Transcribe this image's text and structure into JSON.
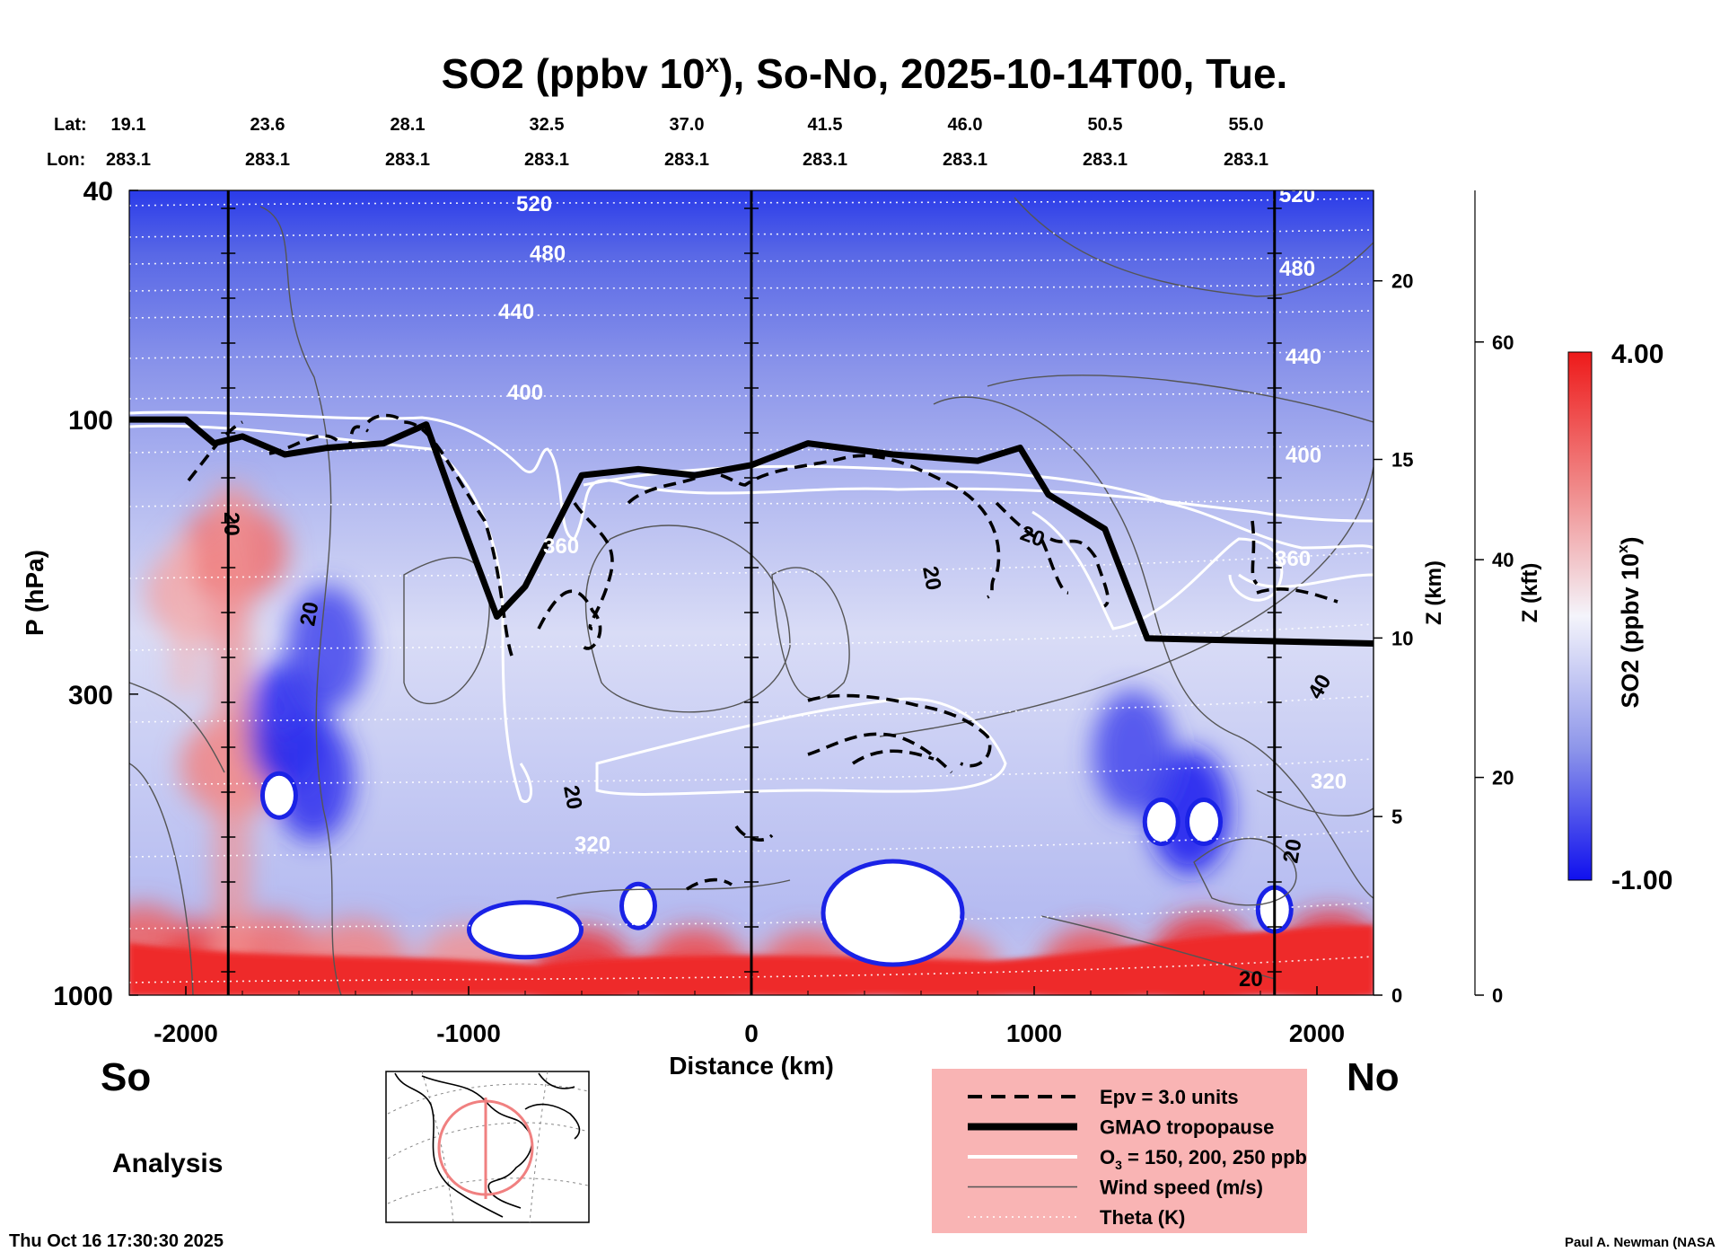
{
  "chart_data": {
    "type": "heatmap",
    "title_main": "SO2 (ppbv 10",
    "title_sup": "x",
    "title_rest": "), So-No, 2025-10-14T00, Tue.",
    "lat_label": "Lat:",
    "lon_label": "Lon:",
    "lats": [
      "19.1",
      "23.6",
      "28.1",
      "32.5",
      "37.0",
      "41.5",
      "46.0",
      "50.5",
      "55.0"
    ],
    "lons": [
      "283.1",
      "283.1",
      "283.1",
      "283.1",
      "283.1",
      "283.1",
      "283.1",
      "283.1",
      "283.1"
    ],
    "xlabel": "Distance (km)",
    "ylabel": "P (hPa)",
    "xlim": [
      -2200,
      2200
    ],
    "x_ticks": [
      -2000,
      -1000,
      0,
      1000,
      2000
    ],
    "x_tick_labels": [
      "-2000",
      "-1000",
      "0",
      "1000",
      "2000"
    ],
    "ylim_hpa": [
      40,
      1000
    ],
    "y_ticks": [
      40,
      100,
      300,
      1000
    ],
    "y_tick_labels": [
      "40",
      "100",
      "300",
      "1000"
    ],
    "z_km_label": "Z (km)",
    "z_km_ticks": [
      "0",
      "5",
      "10",
      "15",
      "20"
    ],
    "z_kft_label": "Z (kft)",
    "z_kft_ticks": [
      "0",
      "20",
      "40",
      "60"
    ],
    "station_lines_km": [
      -1850,
      0,
      1850
    ],
    "colorbar": {
      "label_pre": "SO2 (ppbv 10",
      "label_sup": "x",
      "label_post": ")",
      "min": -1.0,
      "max": 4.0,
      "min_label": "-1.00",
      "max_label": "4.00",
      "colors": [
        "#1010ee",
        "#8e96ea",
        "#f4f4fb",
        "#f08686",
        "#ee1a1a"
      ]
    },
    "theta_labels": [
      "520",
      "480",
      "440",
      "400",
      "360",
      "320",
      "520",
      "480",
      "440",
      "400",
      "360",
      "320"
    ],
    "wind_labels": [
      "20",
      "20",
      "20",
      "20",
      "20",
      "40",
      "20",
      "20"
    ],
    "tropopause": [
      {
        "x": -2200,
        "p": 100
      },
      {
        "x": -2100,
        "p": 100
      },
      {
        "x": -2000,
        "p": 100
      },
      {
        "x": -1900,
        "p": 110
      },
      {
        "x": -1800,
        "p": 107
      },
      {
        "x": -1650,
        "p": 115
      },
      {
        "x": -1500,
        "p": 112
      },
      {
        "x": -1300,
        "p": 110
      },
      {
        "x": -1150,
        "p": 102
      },
      {
        "x": -1050,
        "p": 140
      },
      {
        "x": -900,
        "p": 220
      },
      {
        "x": -800,
        "p": 195
      },
      {
        "x": -600,
        "p": 125
      },
      {
        "x": -400,
        "p": 122
      },
      {
        "x": -200,
        "p": 125
      },
      {
        "x": 0,
        "p": 120
      },
      {
        "x": 200,
        "p": 110
      },
      {
        "x": 500,
        "p": 115
      },
      {
        "x": 800,
        "p": 118
      },
      {
        "x": 950,
        "p": 112
      },
      {
        "x": 1050,
        "p": 135
      },
      {
        "x": 1250,
        "p": 155
      },
      {
        "x": 1400,
        "p": 240
      },
      {
        "x": 2200,
        "p": 245
      }
    ],
    "so2_blobs": [
      {
        "x": -2150,
        "p": 850,
        "v": 3.2
      },
      {
        "x": -1900,
        "p": 900,
        "v": 3.6
      },
      {
        "x": -1700,
        "p": 880,
        "v": 3.0
      },
      {
        "x": -1400,
        "p": 900,
        "v": 2.8
      },
      {
        "x": -1000,
        "p": 920,
        "v": 2.6
      },
      {
        "x": -600,
        "p": 930,
        "v": 3.8
      },
      {
        "x": -200,
        "p": 930,
        "v": 3.5
      },
      {
        "x": 200,
        "p": 940,
        "v": 3.2
      },
      {
        "x": 700,
        "p": 950,
        "v": 3.0
      },
      {
        "x": 1200,
        "p": 930,
        "v": 3.4
      },
      {
        "x": 1600,
        "p": 880,
        "v": 3.8
      },
      {
        "x": 2050,
        "p": 870,
        "v": 3.9
      },
      {
        "x": -1950,
        "p": 200,
        "v": 2.4
      },
      {
        "x": -1830,
        "p": 170,
        "v": 3.0
      },
      {
        "x": -1830,
        "p": 400,
        "v": 2.8
      },
      {
        "x": -1650,
        "p": 340,
        "v": -0.8
      },
      {
        "x": -1550,
        "p": 420,
        "v": -0.7
      },
      {
        "x": 1550,
        "p": 480,
        "v": -0.9
      },
      {
        "x": 1350,
        "p": 380,
        "v": -0.5
      },
      {
        "x": -1500,
        "p": 250,
        "v": -0.5
      }
    ],
    "white_holes": [
      {
        "x": -1670,
        "p": 450
      },
      {
        "x": -800,
        "p": 770
      },
      {
        "x": -400,
        "p": 700
      },
      {
        "x": 500,
        "p": 720
      },
      {
        "x": 1450,
        "p": 500
      },
      {
        "x": 1600,
        "p": 500
      },
      {
        "x": 1850,
        "p": 710
      }
    ],
    "legend": [
      {
        "style": "dashed",
        "label": "Epv = 3.0 units"
      },
      {
        "style": "thick",
        "label": "GMAO tropopause"
      },
      {
        "style": "white",
        "label_pre": "O",
        "label_sub": "3",
        "label_post": " = 150, 200, 250 ppb"
      },
      {
        "style": "thin",
        "label": "Wind speed (m/s)"
      },
      {
        "style": "dotted",
        "label": "Theta (K)"
      }
    ]
  },
  "labels": {
    "left_end": "So",
    "right_end": "No",
    "analysis": "Analysis",
    "timestamp": "Thu Oct 16 17:30:30 2025",
    "credit": "Paul A. Newman (NASA"
  }
}
